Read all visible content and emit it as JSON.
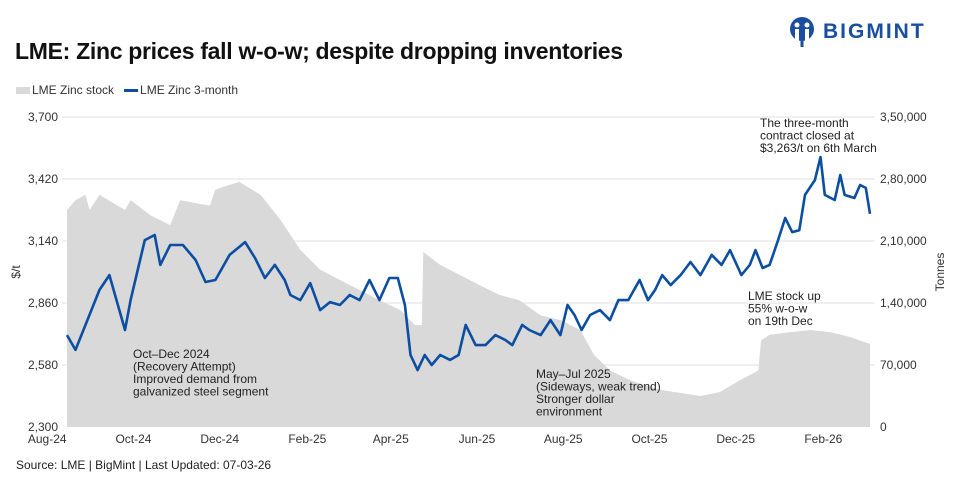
{
  "title": "LME: Zinc prices fall w-o-w; despite dropping inventories",
  "logo": {
    "text": "BIGMINT",
    "color": "#1a4fa0"
  },
  "source": "Source: LME | BigMint | Last Updated: 07-03-26",
  "chart_data": {
    "type": "line+area",
    "title": "LME: Zinc prices fall w-o-w; despite dropping inventories",
    "legend_position": "top-left",
    "grid": true,
    "x_ticks": [
      "Aug-24",
      "Oct-24",
      "Dec-24",
      "Feb-25",
      "Apr-25",
      "Jun-25",
      "Aug-25",
      "Oct-25",
      "Dec-25",
      "Feb-26"
    ],
    "x_tick_dates": [
      "2024-08-01",
      "2024-10-01",
      "2024-12-01",
      "2025-02-01",
      "2025-04-01",
      "2025-06-01",
      "2025-08-01",
      "2025-10-01",
      "2025-12-01",
      "2026-02-01"
    ],
    "y_left": {
      "label": "$/t",
      "range": [
        2300,
        3700
      ],
      "ticks": [
        "2,300",
        "2,580",
        "2,860",
        "3,140",
        "3,420",
        "3,700"
      ],
      "tick_values": [
        2300,
        2580,
        2860,
        3140,
        3420,
        3700
      ]
    },
    "y_right": {
      "label": "Tonnes",
      "range": [
        0,
        350000
      ],
      "ticks": [
        "0",
        "70,000",
        "1,40,000",
        "2,10,000",
        "2,80,000",
        "3,50,000"
      ],
      "tick_values": [
        0,
        70000,
        140000,
        210000,
        280000,
        350000
      ]
    },
    "series": [
      {
        "name": "LME Zinc stock",
        "type": "area",
        "axis": "right",
        "color": "#d9d9d9",
        "x": [
          "2024-08-15",
          "2024-08-21",
          "2024-08-28",
          "2024-08-31",
          "2024-09-07",
          "2024-09-25",
          "2024-09-29",
          "2024-10-13",
          "2024-10-27",
          "2024-11-03",
          "2024-11-24",
          "2024-11-28",
          "2024-12-07",
          "2024-12-15",
          "2024-12-30",
          "2025-01-13",
          "2025-01-27",
          "2025-02-10",
          "2025-02-24",
          "2025-03-10",
          "2025-03-24",
          "2025-04-08",
          "2025-04-18",
          "2025-04-23",
          "2025-04-24",
          "2025-05-06",
          "2025-05-20",
          "2025-06-03",
          "2025-06-17",
          "2025-07-01",
          "2025-07-16",
          "2025-07-30",
          "2025-08-13",
          "2025-08-23",
          "2025-09-03",
          "2025-09-17",
          "2025-10-08",
          "2025-11-06",
          "2025-11-20",
          "2025-12-04",
          "2025-12-15",
          "2025-12-17",
          "2025-12-19",
          "2025-12-25",
          "2026-01-08",
          "2026-01-23",
          "2026-02-06",
          "2026-02-20",
          "2026-03-06"
        ],
        "values": [
          245000,
          256000,
          262000,
          245000,
          262000,
          245000,
          256000,
          239000,
          228000,
          256000,
          250000,
          268000,
          273000,
          276600,
          262000,
          233700,
          200000,
          177700,
          166000,
          154700,
          143000,
          132000,
          115000,
          115000,
          197600,
          183000,
          171600,
          160000,
          149000,
          143000,
          126000,
          120800,
          109500,
          81000,
          64000,
          53000,
          42000,
          35000,
          39500,
          53000,
          62000,
          64000,
          98000,
          104000,
          107000,
          109500,
          107000,
          101600,
          93700
        ]
      },
      {
        "name": "LME Zinc 3-month",
        "type": "line",
        "axis": "left",
        "color": "#0b4ea2",
        "x": [
          "2024-08-15",
          "2024-08-21",
          "2024-09-07",
          "2024-09-14",
          "2024-09-25",
          "2024-09-29",
          "2024-10-09",
          "2024-10-16",
          "2024-10-20",
          "2024-10-27",
          "2024-11-05",
          "2024-11-14",
          "2024-11-21",
          "2024-11-28",
          "2024-12-08",
          "2024-12-19",
          "2024-12-26",
          "2025-01-02",
          "2025-01-09",
          "2025-01-16",
          "2025-01-20",
          "2025-01-27",
          "2025-02-03",
          "2025-02-10",
          "2025-02-17",
          "2025-02-24",
          "2025-03-03",
          "2025-03-10",
          "2025-03-17",
          "2025-03-24",
          "2025-03-31",
          "2025-04-06",
          "2025-04-11",
          "2025-04-15",
          "2025-04-20",
          "2025-04-25",
          "2025-04-30",
          "2025-05-06",
          "2025-05-13",
          "2025-05-19",
          "2025-05-24",
          "2025-05-31",
          "2025-06-07",
          "2025-06-14",
          "2025-06-21",
          "2025-06-26",
          "2025-07-03",
          "2025-07-08",
          "2025-07-16",
          "2025-07-23",
          "2025-07-30",
          "2025-08-04",
          "2025-08-09",
          "2025-08-14",
          "2025-08-20",
          "2025-08-27",
          "2025-09-03",
          "2025-09-09",
          "2025-09-16",
          "2025-09-24",
          "2025-09-30",
          "2025-10-05",
          "2025-10-10",
          "2025-10-16",
          "2025-10-23",
          "2025-10-30",
          "2025-11-06",
          "2025-11-14",
          "2025-11-21",
          "2025-11-27",
          "2025-12-05",
          "2025-12-11",
          "2025-12-15",
          "2025-12-20",
          "2025-12-25",
          "2025-12-31",
          "2026-01-05",
          "2026-01-10",
          "2026-01-15",
          "2026-01-19",
          "2026-01-26",
          "2026-01-30",
          "2026-02-02",
          "2026-02-09",
          "2026-02-13",
          "2026-02-16",
          "2026-02-23",
          "2026-02-27",
          "2026-03-03",
          "2026-03-06"
        ],
        "values": [
          2715,
          2648,
          2919,
          2986,
          2738,
          2873,
          3144,
          3167,
          3032,
          3122,
          3122,
          3054,
          2955,
          2964,
          3077,
          3135,
          3063,
          2973,
          3032,
          2964,
          2896,
          2873,
          2950,
          2828,
          2864,
          2851,
          2896,
          2873,
          2964,
          2873,
          2973,
          2973,
          2851,
          2625,
          2557,
          2625,
          2580,
          2625,
          2603,
          2625,
          2761,
          2670,
          2670,
          2715,
          2693,
          2670,
          2761,
          2738,
          2715,
          2783,
          2715,
          2851,
          2806,
          2738,
          2806,
          2828,
          2783,
          2873,
          2873,
          2964,
          2873,
          2919,
          2986,
          2941,
          2986,
          3045,
          2986,
          3077,
          3032,
          3099,
          2986,
          3032,
          3099,
          3018,
          3032,
          3144,
          3244,
          3180,
          3189,
          3348,
          3415,
          3519,
          3348,
          3325,
          3438,
          3348,
          3334,
          3393,
          3380,
          3263
        ]
      }
    ],
    "annotations": [
      {
        "lines": [
          "Oct–Dec 2024",
          "(Recovery Attempt)",
          "Improved demand from",
          "galvanized steel segment"
        ]
      },
      {
        "lines": [
          "May–Jul 2025",
          "(Sideways, weak trend)",
          "Stronger dollar",
          "environment"
        ]
      },
      {
        "lines": [
          "LME stock up",
          "55% w-o-w",
          "on 19th Dec"
        ]
      },
      {
        "lines": [
          "The three-month",
          "contract closed at",
          "$3,263/t on 6th March"
        ]
      }
    ]
  }
}
